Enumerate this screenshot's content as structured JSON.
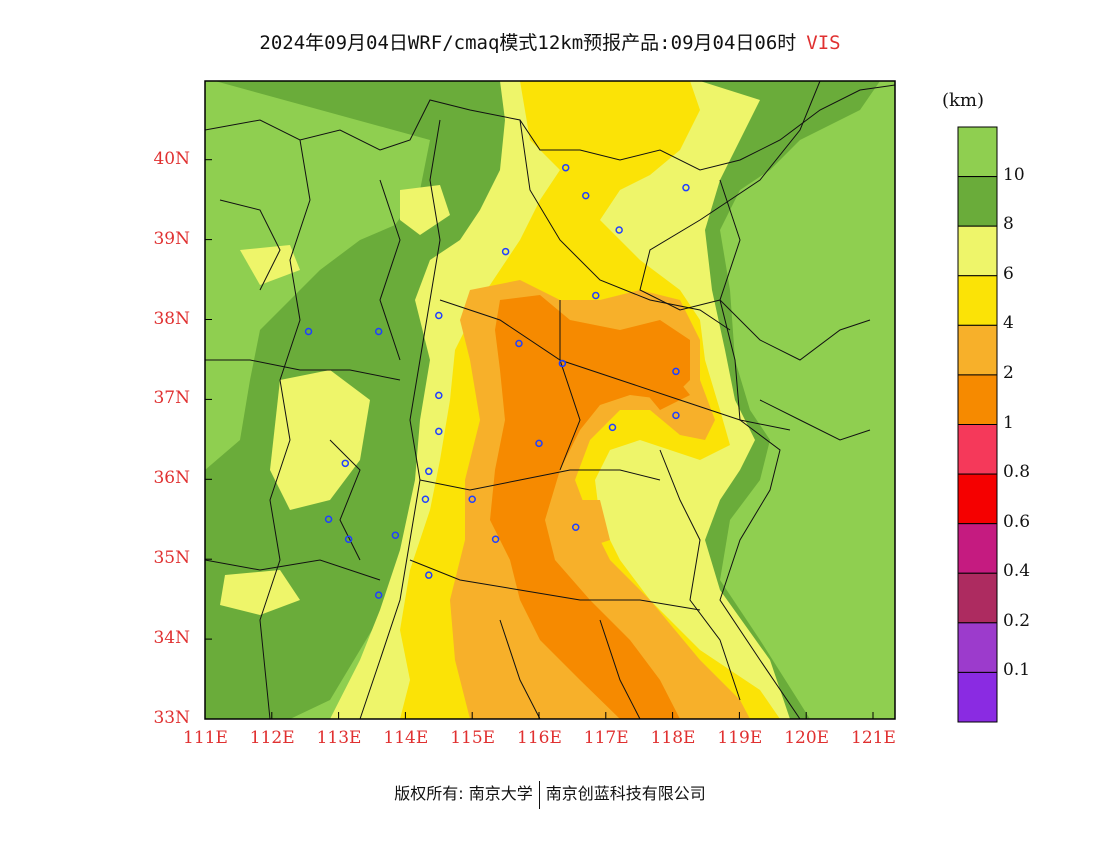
{
  "title": {
    "main": "2024年09月04日WRF/cmaq模式12km预报产品:09月04日06时",
    "variable": "VIS"
  },
  "legend": {
    "unit": "(km)",
    "labels": [
      "10",
      "8",
      "6",
      "4",
      "2",
      "1",
      "0.8",
      "0.6",
      "0.4",
      "0.2",
      "0.1"
    ],
    "colors": [
      "#8fcf50",
      "#6aac3a",
      "#eef56a",
      "#fbe306",
      "#f7b02a",
      "#f68a00",
      "#f5395a",
      "#f50000",
      "#c51b80",
      "#ad2b60",
      "#9c3bcc",
      "#8a2be2"
    ]
  },
  "axes": {
    "x_ticks": [
      "111E",
      "112E",
      "113E",
      "114E",
      "115E",
      "116E",
      "117E",
      "118E",
      "119E",
      "120E",
      "121E"
    ],
    "y_ticks": [
      "33N",
      "34N",
      "35N",
      "36N",
      "37N",
      "38N",
      "39N",
      "40N"
    ]
  },
  "cities": [
    {
      "lon": 116.4,
      "lat": 39.9
    },
    {
      "lon": 116.7,
      "lat": 39.55
    },
    {
      "lon": 118.2,
      "lat": 39.65
    },
    {
      "lon": 117.2,
      "lat": 39.12
    },
    {
      "lon": 115.5,
      "lat": 38.85
    },
    {
      "lon": 116.85,
      "lat": 38.3
    },
    {
      "lon": 112.55,
      "lat": 37.85
    },
    {
      "lon": 113.6,
      "lat": 37.85
    },
    {
      "lon": 114.5,
      "lat": 38.05
    },
    {
      "lon": 115.7,
      "lat": 37.7
    },
    {
      "lon": 116.35,
      "lat": 37.45
    },
    {
      "lon": 118.05,
      "lat": 37.35
    },
    {
      "lon": 114.5,
      "lat": 37.05
    },
    {
      "lon": 114.5,
      "lat": 36.6
    },
    {
      "lon": 117.1,
      "lat": 36.65
    },
    {
      "lon": 118.05,
      "lat": 36.8
    },
    {
      "lon": 116.0,
      "lat": 36.45
    },
    {
      "lon": 113.1,
      "lat": 36.2
    },
    {
      "lon": 114.35,
      "lat": 36.1
    },
    {
      "lon": 114.3,
      "lat": 35.75
    },
    {
      "lon": 115.0,
      "lat": 35.75
    },
    {
      "lon": 112.85,
      "lat": 35.5
    },
    {
      "lon": 113.15,
      "lat": 35.25
    },
    {
      "lon": 113.85,
      "lat": 35.3
    },
    {
      "lon": 115.35,
      "lat": 35.25
    },
    {
      "lon": 116.55,
      "lat": 35.4
    },
    {
      "lon": 114.35,
      "lat": 34.8
    },
    {
      "lon": 113.6,
      "lat": 34.55
    }
  ],
  "footer": {
    "left": "版权所有: 南京大学",
    "right": "南京创蓝科技有限公司"
  }
}
